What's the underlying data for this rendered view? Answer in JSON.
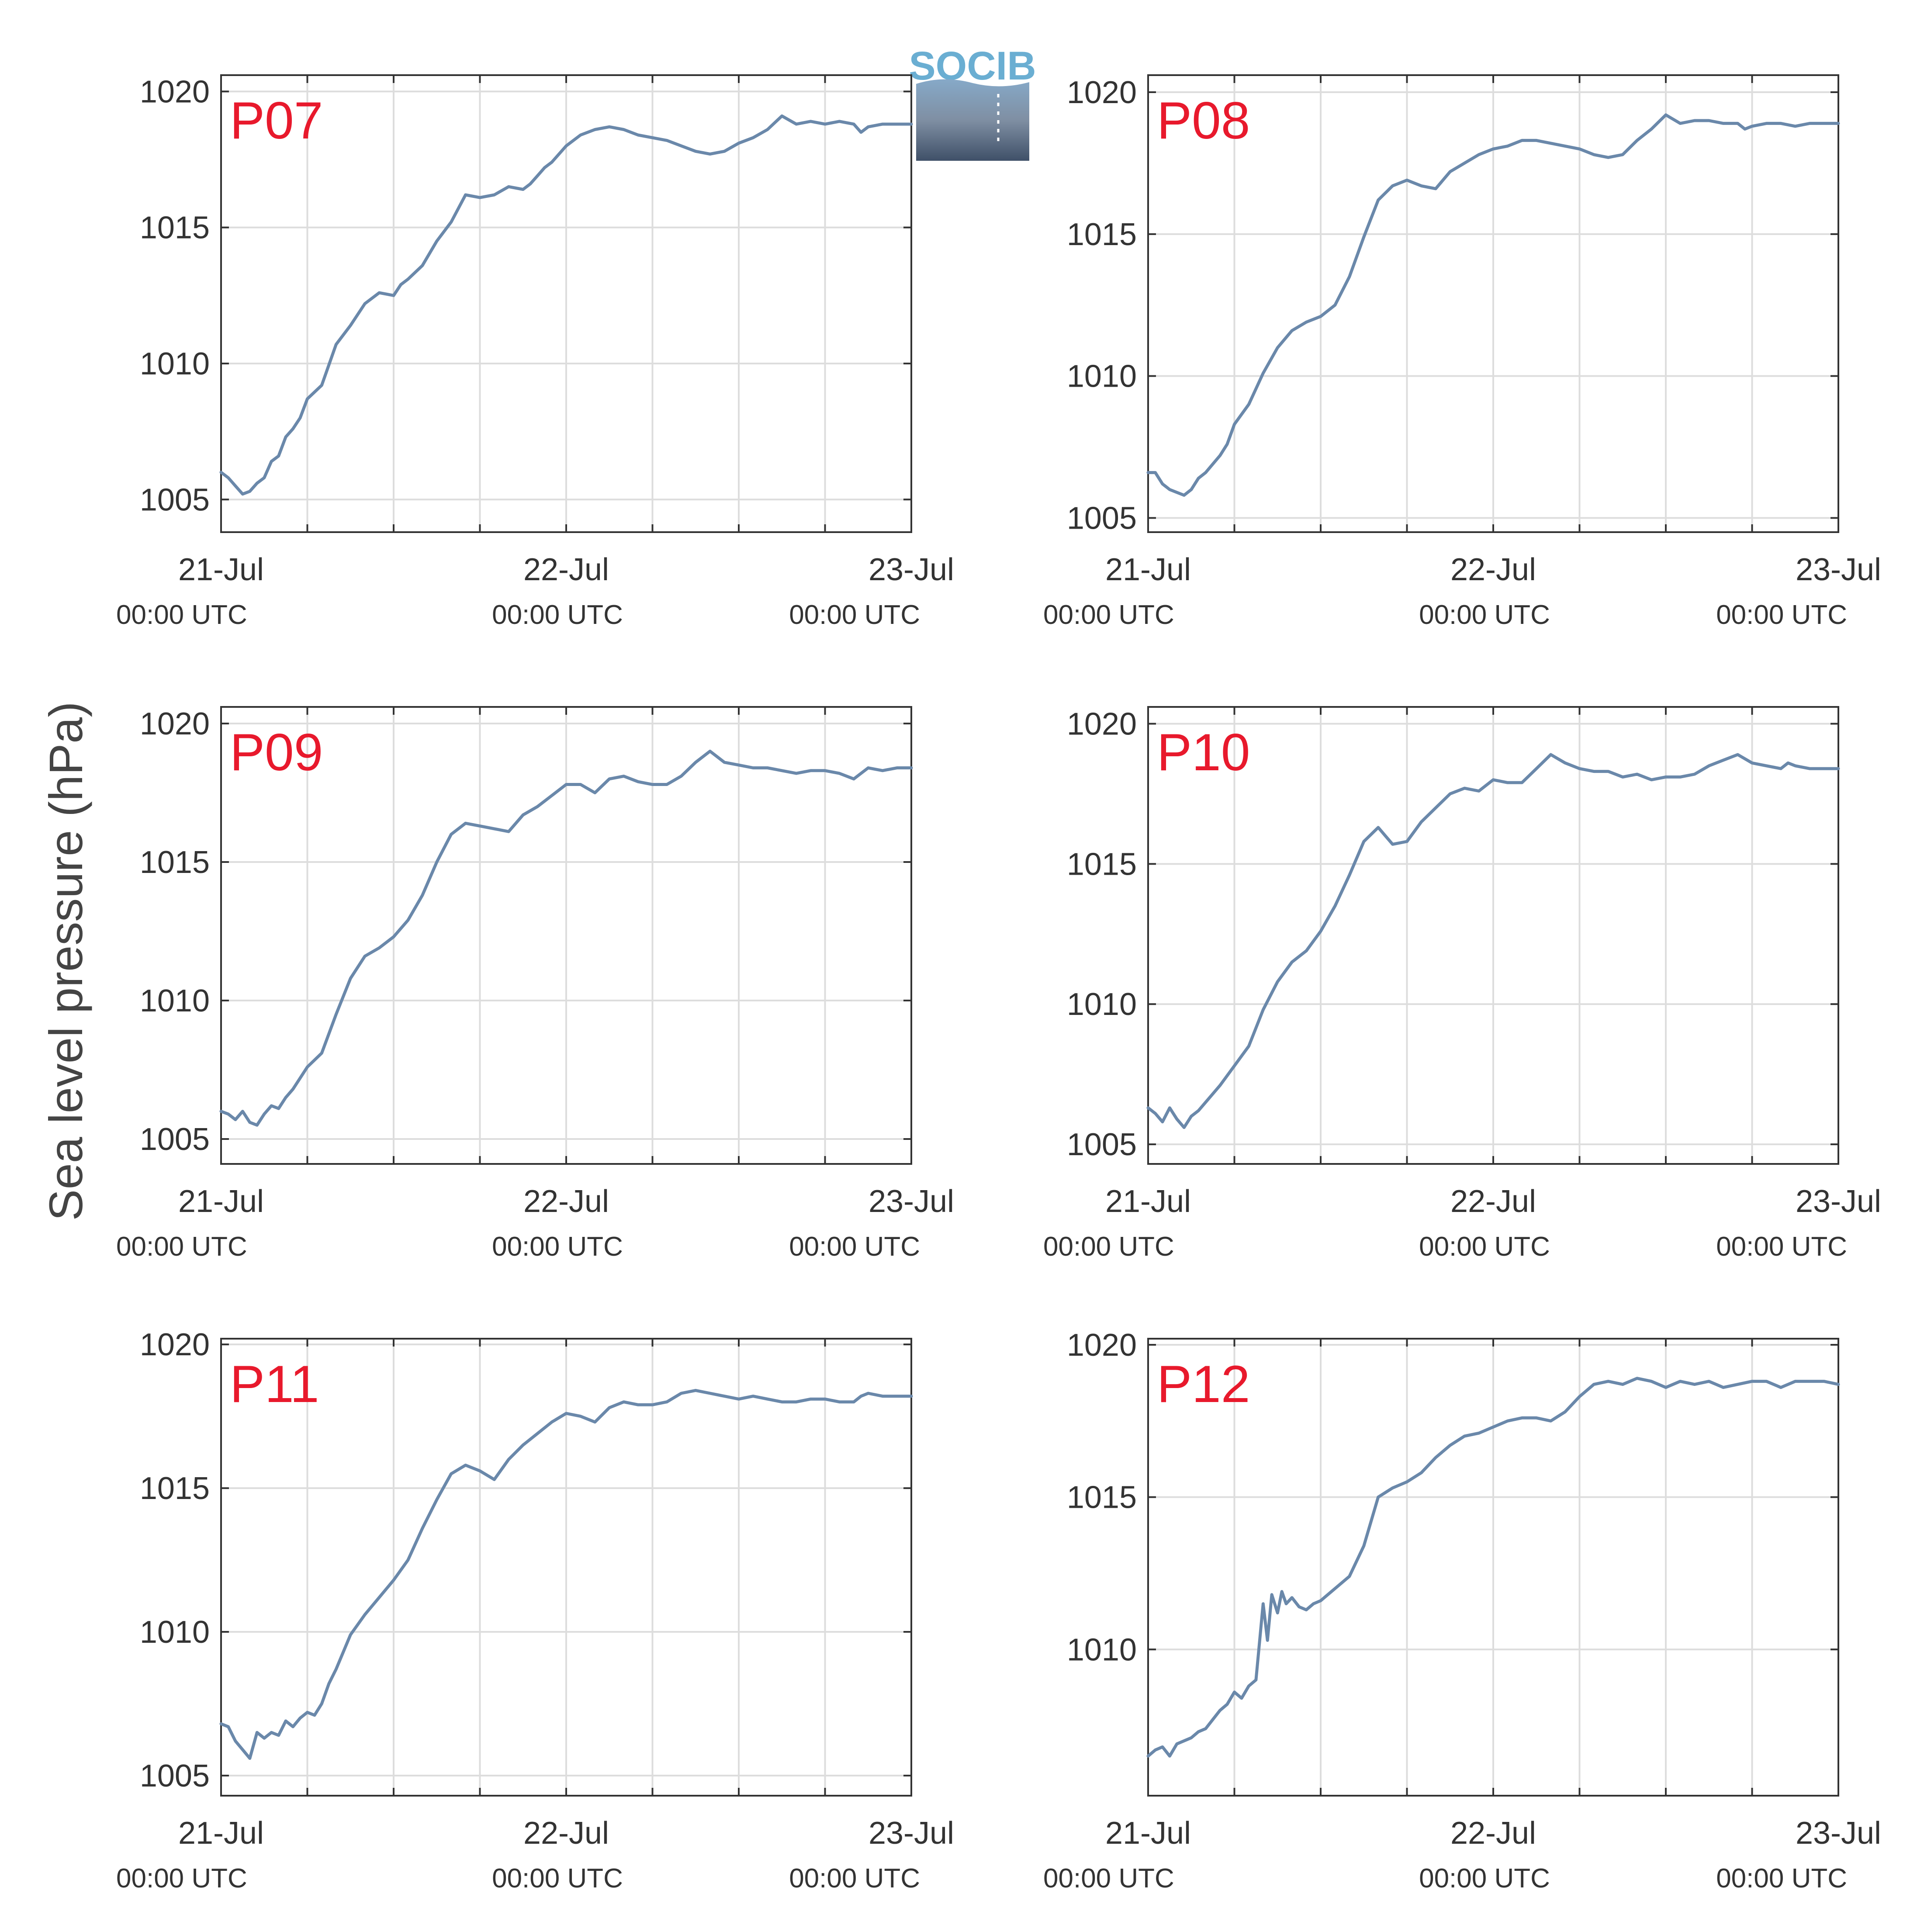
{
  "figure": {
    "ylabel": "Sea level pressure (hPa)",
    "logo_text": "SOCIB",
    "line_color": "#6a88aa",
    "label_color": "#e8192c",
    "grid_color": "#dddddd",
    "axis_color": "#333333",
    "logo_color": "#6aaed2"
  },
  "chart_data": [
    {
      "type": "line",
      "title": "P07",
      "x_tick_labels": [
        {
          "date": "21-Jul",
          "time": "00:00 UTC"
        },
        {
          "date": "22-Jul",
          "time": "00:00 UTC"
        },
        {
          "date": "23-Jul",
          "time": "00:00 UTC"
        }
      ],
      "xlim": [
        0,
        48
      ],
      "ylim": [
        1003.8,
        1020.6
      ],
      "yticks": [
        1005,
        1010,
        1015,
        1020
      ],
      "grid": true,
      "series": [
        {
          "x": [
            0,
            0.5,
            1,
            1.5,
            2,
            2.5,
            3,
            3.5,
            4,
            4.5,
            5,
            5.5,
            6,
            7,
            8,
            9,
            10,
            11,
            12,
            12.5,
            13,
            14,
            15,
            16,
            17,
            18,
            19,
            20,
            21,
            21.5,
            22,
            22.5,
            23,
            24,
            25,
            26,
            27,
            28,
            29,
            30,
            31,
            32,
            33,
            34,
            35,
            36,
            37,
            38,
            39,
            40,
            41,
            42,
            43,
            44,
            44.5,
            45,
            46,
            47,
            48
          ],
          "y": [
            1006.0,
            1005.8,
            1005.5,
            1005.2,
            1005.3,
            1005.6,
            1005.8,
            1006.4,
            1006.6,
            1007.3,
            1007.6,
            1008.0,
            1008.7,
            1009.2,
            1010.7,
            1011.4,
            1012.2,
            1012.6,
            1012.5,
            1012.9,
            1013.1,
            1013.6,
            1014.5,
            1015.2,
            1016.2,
            1016.1,
            1016.2,
            1016.5,
            1016.4,
            1016.6,
            1016.9,
            1017.2,
            1017.4,
            1018.0,
            1018.4,
            1018.6,
            1018.7,
            1018.6,
            1018.4,
            1018.3,
            1018.2,
            1018.0,
            1017.8,
            1017.7,
            1017.8,
            1018.1,
            1018.3,
            1018.6,
            1019.1,
            1018.8,
            1018.9,
            1018.8,
            1018.9,
            1018.8,
            1018.5,
            1018.7,
            1018.8,
            1018.8,
            1018.8
          ]
        }
      ]
    },
    {
      "type": "line",
      "title": "P08",
      "x_tick_labels": [
        {
          "date": "21-Jul",
          "time": "00:00 UTC"
        },
        {
          "date": "22-Jul",
          "time": "00:00 UTC"
        },
        {
          "date": "23-Jul",
          "time": "00:00 UTC"
        }
      ],
      "xlim": [
        0,
        48
      ],
      "ylim": [
        1004.5,
        1020.6
      ],
      "yticks": [
        1005,
        1010,
        1015,
        1020
      ],
      "grid": true,
      "series": [
        {
          "x": [
            0,
            0.5,
            1,
            1.5,
            2,
            2.5,
            3,
            3.5,
            4,
            4.5,
            5,
            5.5,
            6,
            7,
            8,
            9,
            10,
            11,
            12,
            13,
            14,
            15,
            16,
            17,
            18,
            19,
            20,
            21,
            22,
            23,
            24,
            25,
            26,
            27,
            28,
            29,
            30,
            31,
            32,
            33,
            34,
            35,
            36,
            37,
            38,
            39,
            40,
            41,
            41.5,
            42,
            43,
            44,
            45,
            46,
            47,
            48
          ],
          "y": [
            1006.6,
            1006.6,
            1006.2,
            1006.0,
            1005.9,
            1005.8,
            1006.0,
            1006.4,
            1006.6,
            1006.9,
            1007.2,
            1007.6,
            1008.3,
            1009.0,
            1010.1,
            1011.0,
            1011.6,
            1011.9,
            1012.1,
            1012.5,
            1013.5,
            1014.9,
            1016.2,
            1016.7,
            1016.9,
            1016.7,
            1016.6,
            1017.2,
            1017.5,
            1017.8,
            1018.0,
            1018.1,
            1018.3,
            1018.3,
            1018.2,
            1018.1,
            1018.0,
            1017.8,
            1017.7,
            1017.8,
            1018.3,
            1018.7,
            1019.2,
            1018.9,
            1019.0,
            1019.0,
            1018.9,
            1018.9,
            1018.7,
            1018.8,
            1018.9,
            1018.9,
            1018.8,
            1018.9,
            1018.9,
            1018.9
          ]
        }
      ]
    },
    {
      "type": "line",
      "title": "P09",
      "x_tick_labels": [
        {
          "date": "21-Jul",
          "time": "00:00 UTC"
        },
        {
          "date": "22-Jul",
          "time": "00:00 UTC"
        },
        {
          "date": "23-Jul",
          "time": "00:00 UTC"
        }
      ],
      "xlim": [
        0,
        48
      ],
      "ylim": [
        1004.1,
        1020.6
      ],
      "yticks": [
        1005,
        1010,
        1015,
        1020
      ],
      "grid": true,
      "series": [
        {
          "x": [
            0,
            0.5,
            1,
            1.5,
            2,
            2.5,
            3,
            3.5,
            4,
            4.5,
            5,
            6,
            7,
            8,
            9,
            10,
            11,
            12,
            13,
            14,
            15,
            16,
            17,
            18,
            19,
            20,
            21,
            22,
            23,
            24,
            25,
            26,
            27,
            28,
            29,
            30,
            31,
            32,
            33,
            34,
            35,
            36,
            37,
            38,
            39,
            40,
            41,
            42,
            43,
            44,
            44.5,
            45,
            46,
            47,
            48
          ],
          "y": [
            1006.0,
            1005.9,
            1005.7,
            1006.0,
            1005.6,
            1005.5,
            1005.9,
            1006.2,
            1006.1,
            1006.5,
            1006.8,
            1007.6,
            1008.1,
            1009.5,
            1010.8,
            1011.6,
            1011.9,
            1012.3,
            1012.9,
            1013.8,
            1015.0,
            1016.0,
            1016.4,
            1016.3,
            1016.2,
            1016.1,
            1016.7,
            1017.0,
            1017.4,
            1017.8,
            1017.8,
            1017.5,
            1018.0,
            1018.1,
            1017.9,
            1017.8,
            1017.8,
            1018.1,
            1018.6,
            1019.0,
            1018.6,
            1018.5,
            1018.4,
            1018.4,
            1018.3,
            1018.2,
            1018.3,
            1018.3,
            1018.2,
            1018.0,
            1018.2,
            1018.4,
            1018.3,
            1018.4,
            1018.4
          ]
        }
      ]
    },
    {
      "type": "line",
      "title": "P10",
      "x_tick_labels": [
        {
          "date": "21-Jul",
          "time": "00:00 UTC"
        },
        {
          "date": "22-Jul",
          "time": "00:00 UTC"
        },
        {
          "date": "23-Jul",
          "time": "00:00 UTC"
        }
      ],
      "xlim": [
        0,
        48
      ],
      "ylim": [
        1004.3,
        1020.6
      ],
      "yticks": [
        1005,
        1010,
        1015,
        1020
      ],
      "grid": true,
      "series": [
        {
          "x": [
            0,
            0.5,
            1,
            1.5,
            2,
            2.5,
            3,
            3.5,
            4,
            4.5,
            5,
            6,
            7,
            8,
            9,
            10,
            11,
            12,
            13,
            14,
            15,
            16,
            17,
            18,
            19,
            20,
            21,
            22,
            23,
            24,
            25,
            26,
            27,
            28,
            29,
            30,
            31,
            32,
            33,
            34,
            35,
            36,
            37,
            38,
            39,
            40,
            41,
            42,
            43,
            44,
            44.5,
            45,
            46,
            47,
            48
          ],
          "y": [
            1006.3,
            1006.1,
            1005.8,
            1006.3,
            1005.9,
            1005.6,
            1006.0,
            1006.2,
            1006.5,
            1006.8,
            1007.1,
            1007.8,
            1008.5,
            1009.8,
            1010.8,
            1011.5,
            1011.9,
            1012.6,
            1013.5,
            1014.6,
            1015.8,
            1016.3,
            1015.7,
            1015.8,
            1016.5,
            1017.0,
            1017.5,
            1017.7,
            1017.6,
            1018.0,
            1017.9,
            1017.9,
            1018.4,
            1018.9,
            1018.6,
            1018.4,
            1018.3,
            1018.3,
            1018.1,
            1018.2,
            1018.0,
            1018.1,
            1018.1,
            1018.2,
            1018.5,
            1018.7,
            1018.9,
            1018.6,
            1018.5,
            1018.4,
            1018.6,
            1018.5,
            1018.4,
            1018.4,
            1018.4
          ]
        }
      ]
    },
    {
      "type": "line",
      "title": "P11",
      "x_tick_labels": [
        {
          "date": "21-Jul",
          "time": "00:00 UTC"
        },
        {
          "date": "22-Jul",
          "time": "00:00 UTC"
        },
        {
          "date": "23-Jul",
          "time": "00:00 UTC"
        }
      ],
      "xlim": [
        0,
        48
      ],
      "ylim": [
        1004.3,
        1020.2
      ],
      "yticks": [
        1005,
        1010,
        1015,
        1020
      ],
      "grid": true,
      "series": [
        {
          "x": [
            0,
            0.5,
            1,
            1.5,
            2,
            2.5,
            3,
            3.5,
            4,
            4.5,
            5,
            5.5,
            6,
            6.5,
            7,
            7.5,
            8,
            9,
            10,
            11,
            12,
            13,
            14,
            15,
            16,
            17,
            18,
            19,
            20,
            21,
            22,
            23,
            24,
            25,
            26,
            27,
            28,
            29,
            30,
            31,
            32,
            33,
            34,
            35,
            36,
            37,
            38,
            39,
            40,
            41,
            42,
            43,
            44,
            44.5,
            45,
            46,
            47,
            48
          ],
          "y": [
            1006.8,
            1006.7,
            1006.2,
            1005.9,
            1005.6,
            1006.5,
            1006.3,
            1006.5,
            1006.4,
            1006.9,
            1006.7,
            1007.0,
            1007.2,
            1007.1,
            1007.5,
            1008.2,
            1008.7,
            1009.9,
            1010.6,
            1011.2,
            1011.8,
            1012.5,
            1013.6,
            1014.6,
            1015.5,
            1015.8,
            1015.6,
            1015.3,
            1016.0,
            1016.5,
            1016.9,
            1017.3,
            1017.6,
            1017.5,
            1017.3,
            1017.8,
            1018.0,
            1017.9,
            1017.9,
            1018.0,
            1018.3,
            1018.4,
            1018.3,
            1018.2,
            1018.1,
            1018.2,
            1018.1,
            1018.0,
            1018.0,
            1018.1,
            1018.1,
            1018.0,
            1018.0,
            1018.2,
            1018.3,
            1018.2,
            1018.2,
            1018.2
          ]
        }
      ]
    },
    {
      "type": "line",
      "title": "P12",
      "x_tick_labels": [
        {
          "date": "21-Jul",
          "time": "00:00 UTC"
        },
        {
          "date": "22-Jul",
          "time": "00:00 UTC"
        },
        {
          "date": "23-Jul",
          "time": "00:00 UTC"
        }
      ],
      "xlim": [
        0,
        48
      ],
      "ylim": [
        1005.2,
        1020.2
      ],
      "yticks": [
        1010,
        1015,
        1020
      ],
      "grid": true,
      "series": [
        {
          "x": [
            0,
            0.5,
            1,
            1.5,
            2,
            2.5,
            3,
            3.5,
            4,
            4.5,
            5,
            5.5,
            6,
            6.5,
            7,
            7.5,
            8,
            8.3,
            8.6,
            9,
            9.3,
            9.6,
            10,
            10.5,
            11,
            11.5,
            12,
            13,
            14,
            15,
            16,
            17,
            18,
            19,
            20,
            21,
            22,
            23,
            24,
            25,
            26,
            27,
            28,
            29,
            30,
            31,
            32,
            33,
            34,
            35,
            36,
            37,
            38,
            39,
            40,
            41,
            42,
            43,
            44,
            44.5,
            45,
            46,
            47,
            48
          ],
          "y": [
            1006.5,
            1006.7,
            1006.8,
            1006.5,
            1006.9,
            1007.0,
            1007.1,
            1007.3,
            1007.4,
            1007.7,
            1008.0,
            1008.2,
            1008.6,
            1008.4,
            1008.8,
            1009.0,
            1011.5,
            1010.3,
            1011.8,
            1011.2,
            1011.9,
            1011.5,
            1011.7,
            1011.4,
            1011.3,
            1011.5,
            1011.6,
            1012.0,
            1012.4,
            1013.4,
            1015.0,
            1015.3,
            1015.5,
            1015.8,
            1016.3,
            1016.7,
            1017.0,
            1017.1,
            1017.3,
            1017.5,
            1017.6,
            1017.6,
            1017.5,
            1017.8,
            1018.3,
            1018.7,
            1018.8,
            1018.7,
            1018.9,
            1018.8,
            1018.6,
            1018.8,
            1018.7,
            1018.8,
            1018.6,
            1018.7,
            1018.8,
            1018.8,
            1018.6,
            1018.7,
            1018.8,
            1018.8,
            1018.8,
            1018.7
          ]
        }
      ]
    }
  ]
}
